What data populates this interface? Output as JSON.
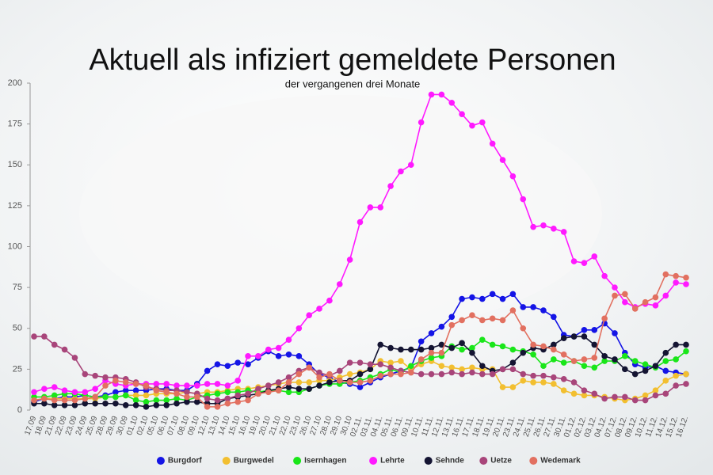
{
  "chart_data": {
    "type": "line",
    "title": "Aktuell als infiziert gemeldete Personen",
    "subtitle": "der vergangenen drei Monate",
    "categories": [
      "17.09",
      "18.09",
      "21.09",
      "22.09",
      "23.09",
      "24.09",
      "25.09",
      "28.09",
      "29.09",
      "30.09",
      "01.10",
      "02.10",
      "05.10",
      "06.10",
      "07.10",
      "08.10",
      "09.10",
      "12.10",
      "13.10",
      "14.10",
      "15.10",
      "16.10",
      "19.10",
      "20.10",
      "21.10",
      "22.10",
      "23.10",
      "26.10",
      "27.10",
      "28.10",
      "29.10",
      "30.10",
      "02.11.",
      "03.11.",
      "04.11.",
      "05.11.",
      "06.11.",
      "09.11.",
      "10.11.",
      "11.11.",
      "12.11.",
      "13.11.",
      "16.11.",
      "17.11.",
      "18.11.",
      "19.11.",
      "20.11.",
      "23.11.",
      "24.11.",
      "25.11.",
      "26.11.",
      "27.11.",
      "30.11.",
      "01.12.",
      "02.12.",
      "03.12.",
      "04.12.",
      "07.12.",
      "08.12.",
      "09.12.",
      "10.12.",
      "11.12.",
      "14.12.",
      "15.12.",
      "16.12."
    ],
    "series": [
      {
        "name": "Burgdorf",
        "color": "#1414e6",
        "values": [
          5,
          7,
          7,
          8,
          8,
          9,
          8,
          9,
          11,
          12,
          12,
          12,
          13,
          13,
          12,
          12,
          16,
          24,
          28,
          27,
          29,
          28,
          32,
          36,
          33,
          34,
          33,
          28,
          22,
          20,
          17,
          16,
          14,
          17,
          20,
          22,
          24,
          26,
          42,
          47,
          51,
          57,
          68,
          69,
          68,
          71,
          68,
          71,
          63,
          63,
          61,
          57,
          46,
          45,
          49,
          49,
          53,
          47,
          35,
          28,
          26,
          27,
          24,
          23,
          22
        ]
      },
      {
        "name": "Burgwedel",
        "color": "#f2bf30",
        "values": [
          6,
          7,
          7,
          7,
          7,
          7,
          7,
          8,
          8,
          9,
          9,
          9,
          10,
          10,
          10,
          11,
          10,
          11,
          11,
          12,
          13,
          13,
          14,
          15,
          16,
          17,
          17,
          17,
          18,
          18,
          20,
          22,
          23,
          25,
          30,
          29,
          30,
          25,
          28,
          30,
          27,
          26,
          25,
          26,
          25,
          25,
          14,
          14,
          18,
          17,
          17,
          16,
          12,
          10,
          9,
          9,
          8,
          7,
          6,
          7,
          9,
          12,
          18,
          21,
          22
        ]
      },
      {
        "name": "Isernhagen",
        "color": "#19e619",
        "values": [
          8,
          8,
          9,
          10,
          10,
          9,
          8,
          8,
          8,
          9,
          6,
          5,
          6,
          6,
          7,
          6,
          8,
          9,
          10,
          11,
          11,
          12,
          11,
          12,
          12,
          11,
          11,
          13,
          15,
          16,
          16,
          17,
          18,
          20,
          22,
          25,
          23,
          27,
          30,
          32,
          33,
          39,
          37,
          38,
          43,
          40,
          39,
          37,
          36,
          34,
          27,
          31,
          29,
          30,
          27,
          26,
          30,
          30,
          33,
          30,
          28,
          26,
          30,
          31,
          36
        ]
      },
      {
        "name": "Lehrte",
        "color": "#ff19ff",
        "values": [
          11,
          13,
          14,
          12,
          11,
          11,
          13,
          18,
          16,
          15,
          16,
          16,
          16,
          16,
          15,
          15,
          15,
          16,
          16,
          15,
          18,
          33,
          33,
          37,
          38,
          43,
          50,
          58,
          62,
          67,
          77,
          92,
          115,
          124,
          124,
          137,
          146,
          150,
          176,
          193,
          193,
          188,
          181,
          174,
          176,
          163,
          153,
          143,
          129,
          112,
          113,
          111,
          109,
          91,
          90,
          94,
          82,
          75,
          66,
          63,
          65,
          64,
          70,
          78,
          77
        ]
      },
      {
        "name": "Sehnde",
        "color": "#141432",
        "values": [
          4,
          4,
          3,
          3,
          3,
          4,
          4,
          4,
          4,
          3,
          3,
          2,
          3,
          3,
          4,
          5,
          5,
          4,
          4,
          7,
          8,
          9,
          10,
          12,
          13,
          14,
          13,
          13,
          15,
          17,
          18,
          18,
          22,
          25,
          40,
          38,
          37,
          37,
          37,
          38,
          40,
          38,
          41,
          35,
          27,
          24,
          25,
          29,
          35,
          38,
          37,
          40,
          44,
          45,
          45,
          40,
          33,
          31,
          25,
          22,
          24,
          27,
          35,
          40,
          40
        ]
      },
      {
        "name": "Uetze",
        "color": "#a8457a",
        "values": [
          45,
          45,
          40,
          37,
          32,
          22,
          21,
          20,
          20,
          19,
          17,
          14,
          13,
          12,
          12,
          11,
          10,
          7,
          6,
          7,
          9,
          10,
          13,
          15,
          17,
          20,
          24,
          26,
          23,
          21,
          24,
          29,
          29,
          28,
          28,
          26,
          24,
          23,
          22,
          22,
          22,
          23,
          22,
          23,
          22,
          22,
          25,
          25,
          22,
          21,
          21,
          20,
          19,
          17,
          12,
          10,
          7,
          8,
          8,
          6,
          6,
          9,
          10,
          15,
          16
        ]
      },
      {
        "name": "Wedemark",
        "color": "#e27060",
        "values": [
          6,
          7,
          6,
          6,
          6,
          7,
          8,
          15,
          18,
          17,
          16,
          15,
          12,
          11,
          10,
          8,
          8,
          2,
          2,
          4,
          5,
          6,
          10,
          11,
          12,
          17,
          22,
          26,
          20,
          22,
          18,
          17,
          17,
          18,
          21,
          22,
          22,
          23,
          31,
          35,
          35,
          52,
          55,
          58,
          55,
          56,
          55,
          61,
          50,
          40,
          39,
          37,
          34,
          30,
          31,
          32,
          56,
          70,
          71,
          62,
          66,
          69,
          83,
          82,
          81
        ]
      }
    ],
    "ylim": [
      0,
      200
    ],
    "yticks": [
      0,
      25,
      50,
      75,
      100,
      125,
      150,
      175,
      200
    ],
    "grid": false,
    "legend": "bottom"
  }
}
